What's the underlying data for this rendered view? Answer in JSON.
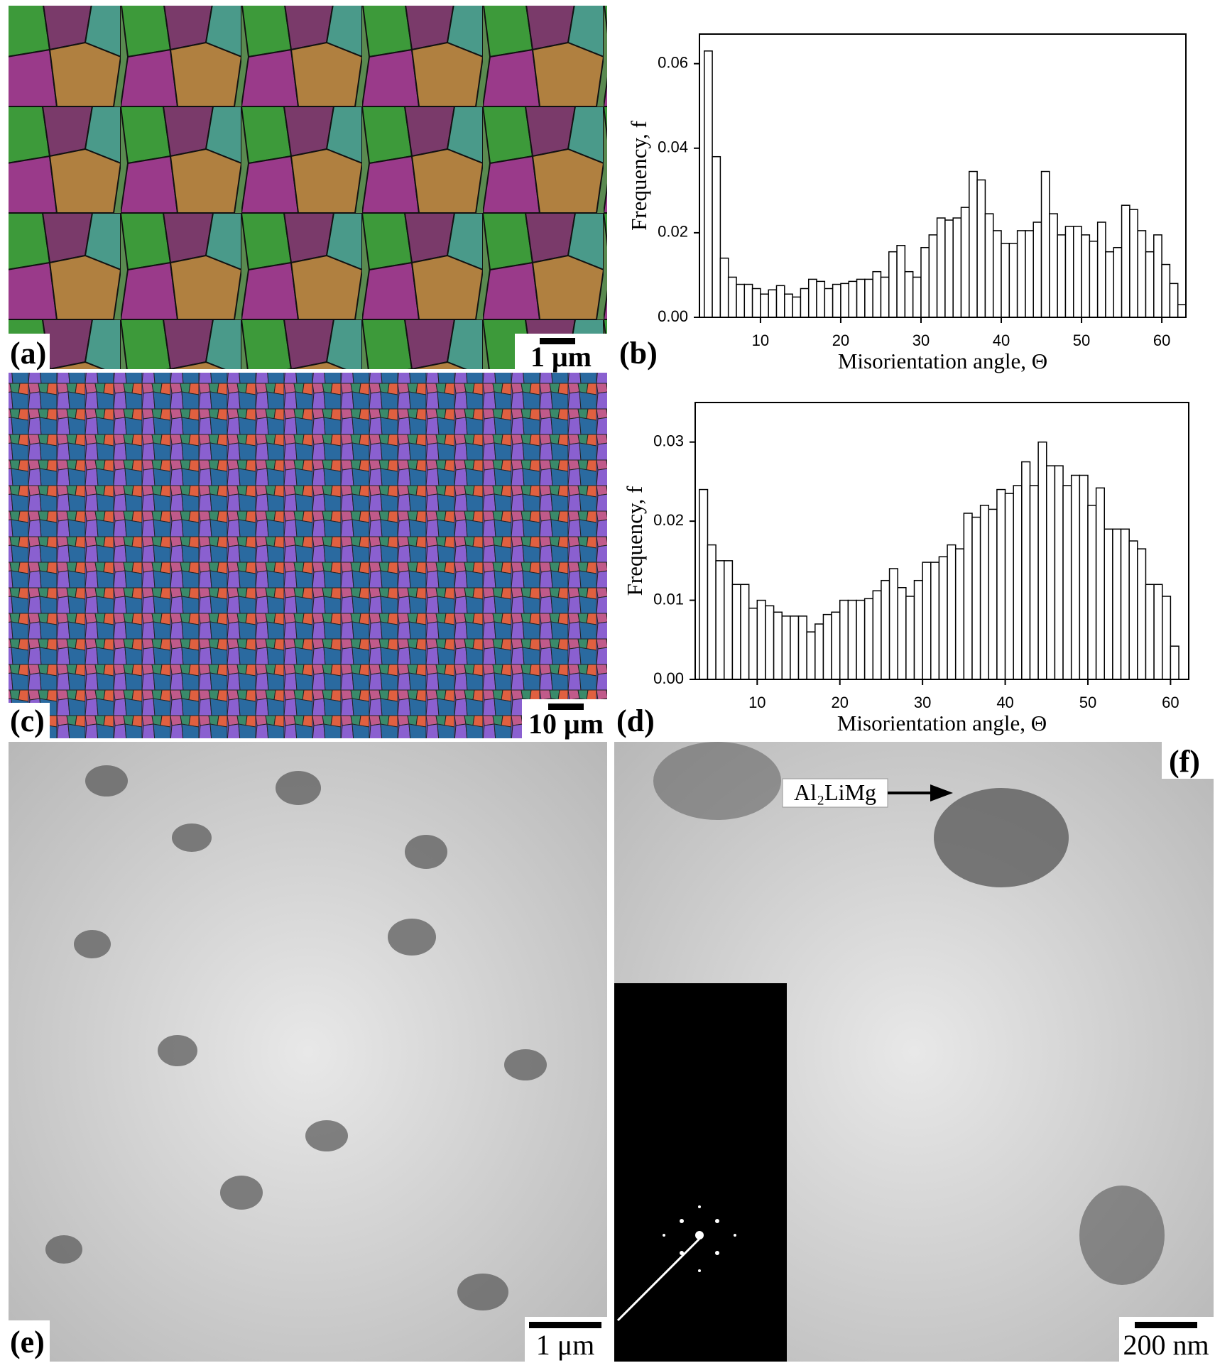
{
  "panel_labels": [
    "(a)",
    "(b)",
    "(c)",
    "(d)",
    "(e)",
    "(f)"
  ],
  "scale_bars": [
    "1 μm",
    "10 μm",
    "1 μm",
    "200 nm"
  ],
  "annotation": "Al₂LiMg",
  "chart_data": [
    {
      "type": "histogram",
      "xlabel": "Misorientation angle, Θ",
      "ylabel": "Frequency, f",
      "bins": [
        3,
        4,
        5,
        6,
        7,
        8,
        9,
        10,
        11,
        12,
        13,
        14,
        15,
        16,
        17,
        18,
        19,
        20,
        21,
        22,
        23,
        24,
        25,
        26,
        27,
        28,
        29,
        30,
        31,
        32,
        33,
        34,
        35,
        36,
        37,
        38,
        39,
        40,
        41,
        42,
        43,
        44,
        45,
        46,
        47,
        48,
        49,
        50,
        51,
        52,
        53,
        54,
        55,
        56,
        57,
        58,
        59,
        60,
        61,
        62,
        63
      ],
      "values": [
        0.063,
        0.038,
        0.014,
        0.0095,
        0.0078,
        0.0078,
        0.0068,
        0.0055,
        0.0065,
        0.0075,
        0.0055,
        0.0048,
        0.0068,
        0.009,
        0.0085,
        0.0068,
        0.0078,
        0.008,
        0.0085,
        0.009,
        0.009,
        0.0108,
        0.0095,
        0.0155,
        0.017,
        0.0108,
        0.0095,
        0.0165,
        0.0195,
        0.0235,
        0.023,
        0.0235,
        0.026,
        0.0345,
        0.0325,
        0.0245,
        0.0205,
        0.0175,
        0.0175,
        0.0205,
        0.0205,
        0.0225,
        0.0345,
        0.0245,
        0.0195,
        0.0215,
        0.0215,
        0.0195,
        0.018,
        0.0225,
        0.0155,
        0.0165,
        0.0265,
        0.0255,
        0.0205,
        0.0155,
        0.0195,
        0.0125,
        0.008,
        0.003
      ],
      "color": "#ffffff",
      "xlim": [
        2.4,
        63
      ],
      "xticks": [
        10,
        20,
        30,
        40,
        50,
        60
      ],
      "ylim": [
        0,
        0.067
      ],
      "yticks": [
        {
          "value": 0,
          "label": "0.00"
        },
        0.02,
        0.04,
        0.06
      ]
    },
    {
      "type": "histogram",
      "xlabel": "Misorientation angle, Θ",
      "ylabel": "Frequency, f",
      "bins": [
        3,
        4,
        5,
        6,
        7,
        8,
        9,
        10,
        11,
        12,
        13,
        14,
        15,
        16,
        17,
        18,
        19,
        20,
        21,
        22,
        23,
        24,
        25,
        26,
        27,
        28,
        29,
        30,
        31,
        32,
        33,
        34,
        35,
        36,
        37,
        38,
        39,
        40,
        41,
        42,
        43,
        44,
        45,
        46,
        47,
        48,
        49,
        50,
        51,
        52,
        53,
        54,
        55,
        56,
        57,
        58,
        59,
        60,
        61
      ],
      "values": [
        0.024,
        0.017,
        0.015,
        0.015,
        0.012,
        0.012,
        0.009,
        0.01,
        0.0093,
        0.0085,
        0.008,
        0.008,
        0.008,
        0.006,
        0.007,
        0.0082,
        0.0085,
        0.01,
        0.01,
        0.01,
        0.0102,
        0.0112,
        0.0125,
        0.014,
        0.0116,
        0.0105,
        0.0125,
        0.0148,
        0.0148,
        0.0155,
        0.017,
        0.0165,
        0.021,
        0.0205,
        0.022,
        0.0215,
        0.024,
        0.0235,
        0.0245,
        0.0275,
        0.0245,
        0.03,
        0.027,
        0.027,
        0.0245,
        0.0258,
        0.0258,
        0.022,
        0.0242,
        0.019,
        0.019,
        0.019,
        0.0175,
        0.0165,
        0.012,
        0.012,
        0.0105,
        0.0042
      ],
      "color": "#ffffff",
      "xlim": [
        2.5,
        62.2
      ],
      "xticks": [
        10,
        20,
        30,
        40,
        50,
        60
      ],
      "ylim": [
        0,
        0.035
      ],
      "yticks": [
        {
          "value": 0,
          "label": "0.00"
        },
        0.01,
        0.02,
        0.03
      ]
    }
  ]
}
